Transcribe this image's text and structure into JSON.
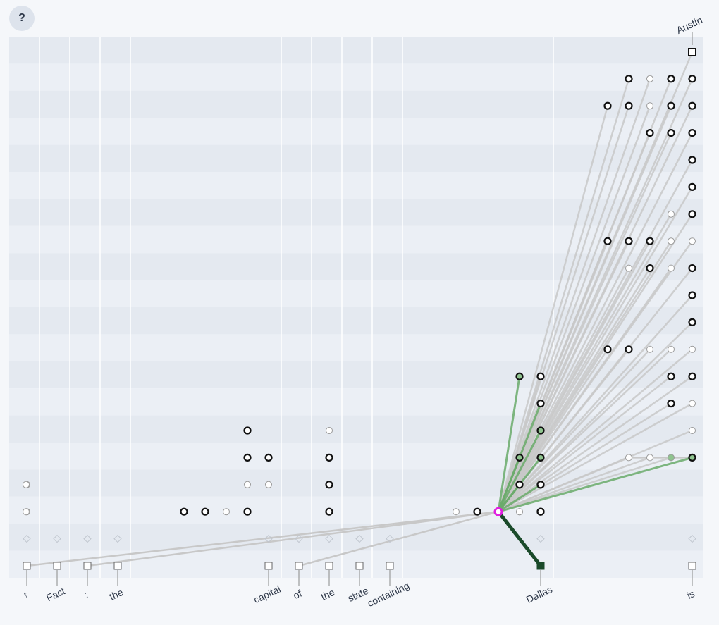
{
  "help": {
    "label": "?"
  },
  "tokens": [
    {
      "label": "↑",
      "col": 0
    },
    {
      "label": "Fact",
      "col": 1
    },
    {
      "label": ":",
      "col": 2
    },
    {
      "label": "the",
      "col": 3
    },
    {
      "label": "capital",
      "col": 9
    },
    {
      "label": "of",
      "col": 10
    },
    {
      "label": "the",
      "col": 11
    },
    {
      "label": "state",
      "col": 12
    },
    {
      "label": "containing",
      "col": 13
    },
    {
      "label": "Dallas",
      "col": 22
    },
    {
      "label": "is",
      "col": 29
    }
  ],
  "output_label": "Austin",
  "colors": {
    "band_odd": "#e4e9f0",
    "band_even": "#ebeff5",
    "divider": "#ffffff",
    "edge_gray": "#c8c8c8",
    "edge_green": "#6aaa6a",
    "edge_dark": "#1a4a2a",
    "selected": "#e020e0",
    "node_stroke": "#111111",
    "node_light_stroke": "#9a9a9a",
    "token_fill": "#ffffff",
    "token_stroke": "#666666"
  },
  "graph": {
    "selected": [
      22,
      2
    ],
    "embed_row": 0,
    "error_row": 1,
    "output_row": 19,
    "output_col": 29,
    "active_embeds": [
      22
    ],
    "error_nodes": [
      0,
      1,
      2,
      3,
      9,
      10,
      11,
      12,
      13,
      22,
      29
    ],
    "nodes": [
      [
        0,
        2,
        0
      ],
      [
        0,
        3,
        0
      ],
      [
        6,
        2,
        1
      ],
      [
        7,
        2,
        1
      ],
      [
        8,
        2,
        0
      ],
      [
        9,
        2,
        1
      ],
      [
        9,
        3,
        0
      ],
      [
        9,
        4,
        1
      ],
      [
        9,
        5,
        1
      ],
      [
        10,
        3,
        0
      ],
      [
        10,
        4,
        1
      ],
      [
        12,
        2,
        1
      ],
      [
        12,
        3,
        1
      ],
      [
        12,
        4,
        1
      ],
      [
        12,
        5,
        0
      ],
      [
        20,
        2,
        0
      ],
      [
        21,
        2,
        1
      ],
      [
        23,
        2,
        0
      ],
      [
        24,
        2,
        1
      ],
      [
        23,
        3,
        1
      ],
      [
        24,
        3,
        1
      ],
      [
        23,
        4,
        1
      ],
      [
        24,
        4,
        1
      ],
      [
        24,
        5,
        1
      ],
      [
        24,
        6,
        1
      ],
      [
        23,
        7,
        1
      ],
      [
        24,
        7,
        1
      ],
      [
        26,
        4,
        0
      ],
      [
        27,
        4,
        0
      ],
      [
        28,
        4,
        0
      ],
      [
        29,
        4,
        1
      ],
      [
        29,
        5,
        0
      ],
      [
        29,
        6,
        0
      ],
      [
        28,
        6,
        1
      ],
      [
        29,
        6,
        0
      ],
      [
        28,
        7,
        1
      ],
      [
        29,
        7,
        1
      ],
      [
        25,
        8,
        1
      ],
      [
        26,
        8,
        1
      ],
      [
        27,
        8,
        0
      ],
      [
        28,
        8,
        0
      ],
      [
        29,
        8,
        0
      ],
      [
        29,
        9,
        1
      ],
      [
        29,
        10,
        1
      ],
      [
        26,
        11,
        0
      ],
      [
        27,
        11,
        1
      ],
      [
        28,
        11,
        0
      ],
      [
        29,
        11,
        1
      ],
      [
        25,
        12,
        1
      ],
      [
        26,
        12,
        1
      ],
      [
        27,
        12,
        1
      ],
      [
        28,
        12,
        0
      ],
      [
        29,
        12,
        0
      ],
      [
        28,
        13,
        0
      ],
      [
        29,
        13,
        1
      ],
      [
        29,
        14,
        1
      ],
      [
        29,
        15,
        1
      ],
      [
        27,
        16,
        1
      ],
      [
        28,
        16,
        1
      ],
      [
        29,
        16,
        1
      ],
      [
        25,
        17,
        1
      ],
      [
        26,
        17,
        1
      ],
      [
        27,
        17,
        0
      ],
      [
        28,
        17,
        1
      ],
      [
        29,
        17,
        1
      ],
      [
        26,
        18,
        1
      ],
      [
        27,
        18,
        0
      ],
      [
        28,
        18,
        1
      ],
      [
        29,
        18,
        1
      ]
    ],
    "green_nodes": [
      [
        23,
        7
      ],
      [
        23,
        4
      ],
      [
        23,
        3
      ],
      [
        24,
        5
      ],
      [
        24,
        4
      ],
      [
        29,
        4
      ],
      [
        28,
        4
      ]
    ],
    "edges_gray": [
      [
        0,
        0
      ],
      [
        2,
        0
      ],
      [
        10,
        0
      ],
      [
        20,
        2
      ]
    ],
    "edges_green": [
      [
        23,
        7
      ],
      [
        23,
        4
      ],
      [
        23,
        3
      ],
      [
        24,
        6
      ],
      [
        24,
        5
      ],
      [
        24,
        4
      ],
      [
        24,
        3
      ],
      [
        29,
        4
      ]
    ],
    "edges_gray_up": [
      [
        24,
        7
      ],
      [
        25,
        8
      ],
      [
        26,
        8
      ],
      [
        27,
        8
      ],
      [
        28,
        8
      ],
      [
        29,
        8
      ],
      [
        29,
        9
      ],
      [
        29,
        10
      ],
      [
        26,
        11
      ],
      [
        27,
        11
      ],
      [
        28,
        11
      ],
      [
        29,
        11
      ],
      [
        25,
        12
      ],
      [
        26,
        12
      ],
      [
        27,
        12
      ],
      [
        28,
        12
      ],
      [
        29,
        12
      ],
      [
        28,
        13
      ],
      [
        29,
        13
      ],
      [
        29,
        14
      ],
      [
        29,
        15
      ],
      [
        27,
        16
      ],
      [
        28,
        16
      ],
      [
        29,
        16
      ],
      [
        25,
        17
      ],
      [
        26,
        17
      ],
      [
        27,
        17
      ],
      [
        28,
        17
      ],
      [
        29,
        17
      ],
      [
        26,
        18
      ],
      [
        27,
        18
      ],
      [
        28,
        18
      ],
      [
        29,
        18
      ],
      [
        29,
        19
      ],
      [
        28,
        4
      ],
      [
        29,
        6
      ],
      [
        28,
        6
      ],
      [
        29,
        5
      ],
      [
        26,
        4
      ],
      [
        27,
        4
      ],
      [
        28,
        7
      ],
      [
        29,
        7
      ]
    ]
  }
}
